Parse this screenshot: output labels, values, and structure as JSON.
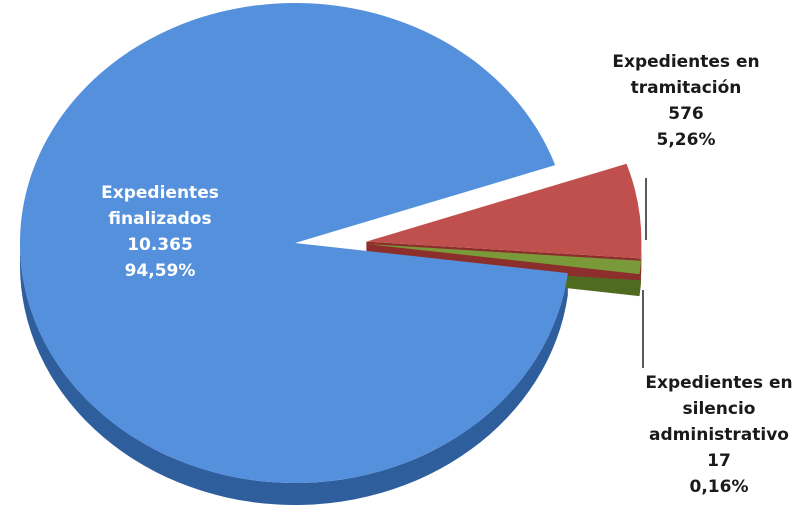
{
  "chart_data": {
    "type": "pie",
    "title": "",
    "slices": [
      {
        "name_lines": [
          "Expedientes",
          "finalizados"
        ],
        "value": 10365,
        "value_label": "10.365",
        "percent": 94.59,
        "percent_label": "94,59%",
        "color": "#5590DC",
        "side_color": "#2E5E9C",
        "label_color": "#ffffff",
        "exploded": false
      },
      {
        "name_lines": [
          "Expedientes en",
          "tramitación"
        ],
        "value": 576,
        "value_label": "576",
        "percent": 5.26,
        "percent_label": "5,26%",
        "color": "#C0504D",
        "side_color": "#8C2F2C",
        "label_color": "#1a1a1a",
        "exploded": true
      },
      {
        "name_lines": [
          "Expedientes en",
          "silencio",
          "administrativo"
        ],
        "value": 17,
        "value_label": "17",
        "percent": 0.16,
        "percent_label": "0,16%",
        "color": "#7A9A3A",
        "side_color": "#4F6B1F",
        "label_color": "#1a1a1a",
        "exploded": true
      }
    ],
    "legend": "none",
    "view": "3d-exploded"
  }
}
